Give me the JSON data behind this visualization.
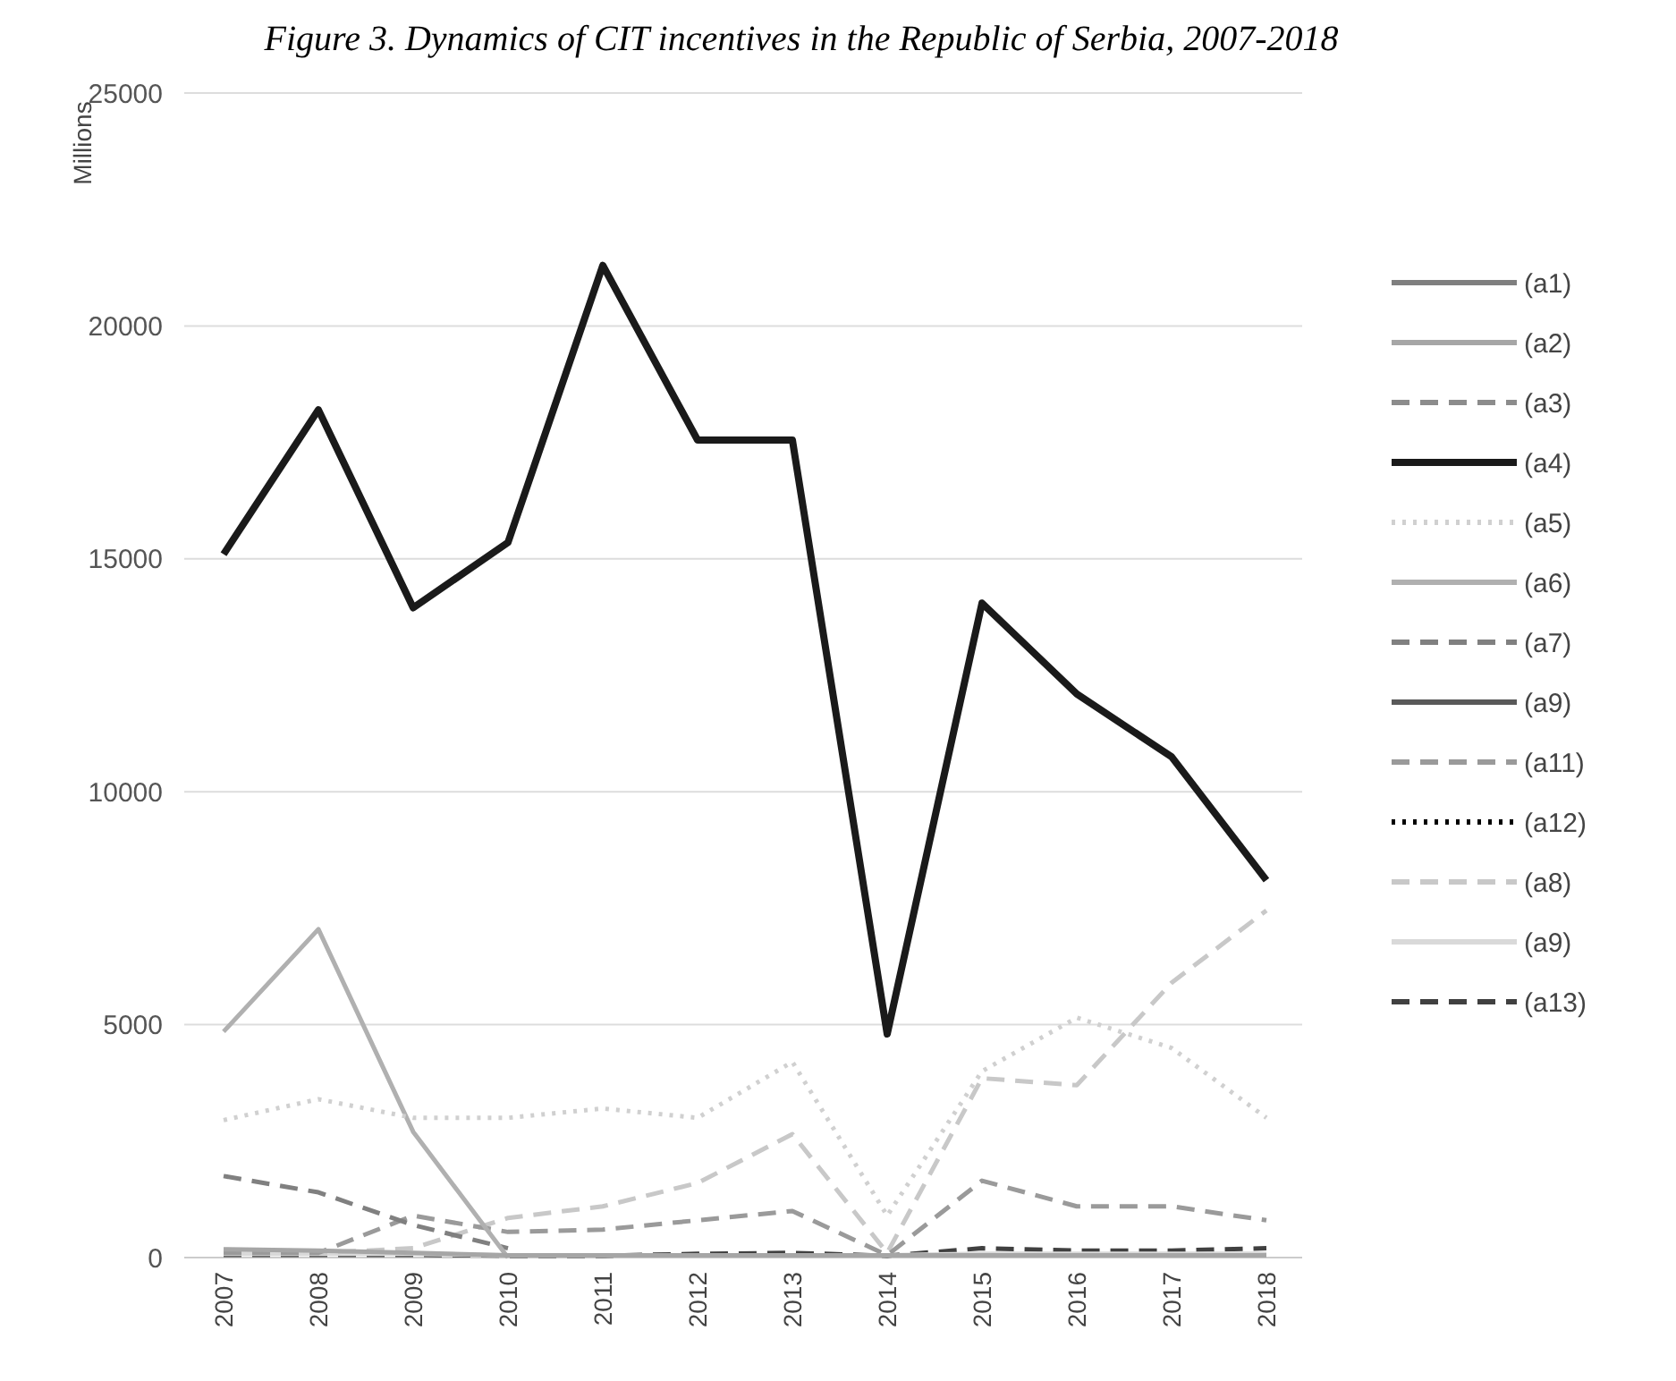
{
  "chart_data": {
    "type": "line",
    "title": "Figure 3. Dynamics of CIT incentives in the Republic of Serbia, 2007-2018",
    "ylabel": "Millions",
    "categories": [
      "2007",
      "2008",
      "2009",
      "2010",
      "2011",
      "2012",
      "2013",
      "2014",
      "2015",
      "2016",
      "2017",
      "2018"
    ],
    "ylim": [
      0,
      25000
    ],
    "yticks": [
      0,
      5000,
      10000,
      15000,
      20000,
      25000
    ],
    "grid": "y",
    "legend": "right",
    "marker": "none",
    "series": [
      {
        "name": "(a1)",
        "color": "#7f7f7f",
        "line_style": "solid",
        "values": [
          null,
          null,
          null,
          null,
          null,
          null,
          null,
          null,
          null,
          null,
          null,
          null
        ]
      },
      {
        "name": "(a2)",
        "color": "#a6a6a6",
        "line_style": "solid",
        "values": [
          180,
          150,
          100,
          50,
          50,
          50,
          50,
          50,
          50,
          50,
          50,
          50
        ]
      },
      {
        "name": "(a3)",
        "color": "#8c8c8c",
        "line_style": "dashed",
        "values": [
          null,
          null,
          null,
          null,
          null,
          null,
          null,
          null,
          null,
          null,
          null,
          null
        ]
      },
      {
        "name": "(a4)",
        "color": "#1a1a1a",
        "line_style": "solid",
        "values": [
          15100,
          18200,
          13950,
          15350,
          21300,
          17550,
          17550,
          4800,
          14050,
          12100,
          10750,
          8100
        ]
      },
      {
        "name": "(a5)",
        "color": "#d0d0d0",
        "line_style": "dotted",
        "values": [
          2950,
          3400,
          3000,
          3000,
          3200,
          3000,
          4200,
          900,
          4000,
          5150,
          4500,
          3000
        ]
      },
      {
        "name": "(a6)",
        "color": "#b0b0b0",
        "line_style": "solid",
        "values": [
          4850,
          7050,
          2700,
          0,
          null,
          null,
          null,
          null,
          null,
          null,
          null,
          null
        ]
      },
      {
        "name": "(a7)",
        "color": "#808080",
        "line_style": "dashed",
        "values": [
          1750,
          1400,
          700,
          200,
          null,
          null,
          null,
          null,
          null,
          null,
          null,
          null
        ]
      },
      {
        "name": "(a9)",
        "color": "#595959",
        "line_style": "solid",
        "values": [
          null,
          null,
          null,
          null,
          null,
          null,
          null,
          null,
          null,
          null,
          null,
          null
        ]
      },
      {
        "name": "(a11)",
        "color": "#9a9a9a",
        "line_style": "dashed",
        "values": [
          100,
          100,
          900,
          550,
          600,
          800,
          1000,
          50,
          1650,
          1100,
          1100,
          800
        ]
      },
      {
        "name": "(a12)",
        "color": "#000000",
        "line_style": "dotted",
        "values": [
          null,
          null,
          null,
          null,
          null,
          null,
          null,
          null,
          null,
          null,
          null,
          null
        ]
      },
      {
        "name": "(a8)",
        "color": "#c8c8c8",
        "line_style": "dashed",
        "values": [
          100,
          100,
          200,
          850,
          1100,
          1600,
          2650,
          100,
          3850,
          3700,
          5900,
          7450
        ]
      },
      {
        "name": "(a9)",
        "color": "#d9d9d9",
        "line_style": "solid",
        "values": [
          80,
          80,
          80,
          50,
          50,
          50,
          50,
          50,
          80,
          80,
          80,
          80
        ]
      },
      {
        "name": "(a13)",
        "color": "#404040",
        "line_style": "dashed",
        "values": [
          60,
          60,
          60,
          40,
          40,
          80,
          100,
          40,
          200,
          150,
          150,
          200
        ]
      }
    ]
  }
}
